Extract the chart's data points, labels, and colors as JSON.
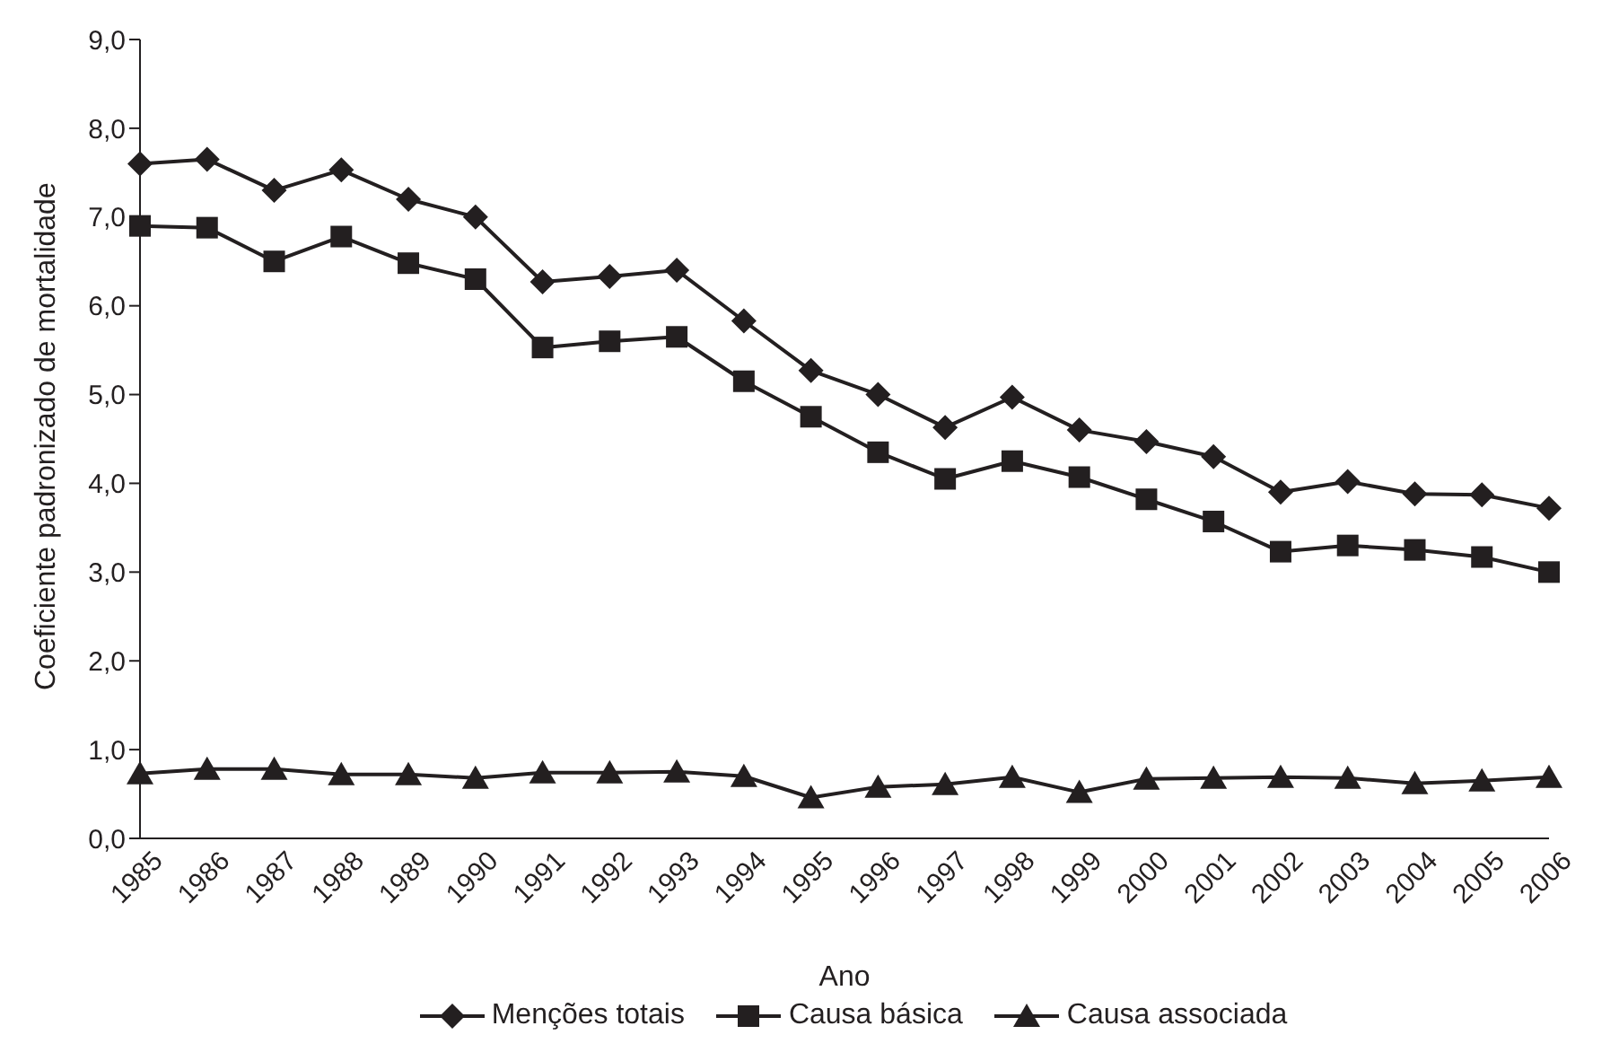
{
  "chart_data": {
    "type": "line",
    "xlabel": "Ano",
    "ylabel": "Coeficiente padronizado de mortalidade",
    "categories": [
      "1985",
      "1986",
      "1987",
      "1988",
      "1989",
      "1990",
      "1991",
      "1992",
      "1993",
      "1994",
      "1995",
      "1996",
      "1997",
      "1998",
      "1999",
      "2000",
      "2001",
      "2002",
      "2003",
      "2004",
      "2005",
      "2006"
    ],
    "series": [
      {
        "name": "Menções totais",
        "color": "#231f20",
        "marker": "diamond",
        "values": [
          7.6,
          7.65,
          7.3,
          7.53,
          7.2,
          7.0,
          6.27,
          6.33,
          6.4,
          5.83,
          5.27,
          5.0,
          4.63,
          4.97,
          4.6,
          4.47,
          4.3,
          3.9,
          4.02,
          3.88,
          3.87,
          3.72
        ]
      },
      {
        "name": "Causa básica",
        "color": "#231f20",
        "marker": "square",
        "values": [
          6.9,
          6.88,
          6.5,
          6.78,
          6.48,
          6.3,
          5.53,
          5.6,
          5.65,
          5.15,
          4.75,
          4.35,
          4.05,
          4.25,
          4.07,
          3.82,
          3.57,
          3.23,
          3.3,
          3.25,
          3.17,
          3.0
        ]
      },
      {
        "name": "Causa associada",
        "color": "#231f20",
        "marker": "triangle",
        "values": [
          0.73,
          0.78,
          0.78,
          0.72,
          0.72,
          0.68,
          0.74,
          0.74,
          0.75,
          0.7,
          0.46,
          0.58,
          0.61,
          0.69,
          0.52,
          0.67,
          0.68,
          0.69,
          0.68,
          0.62,
          0.65,
          0.69
        ]
      }
    ],
    "ylim": [
      0,
      9
    ],
    "yticks": [
      {
        "value": 0,
        "label": "0,0"
      },
      {
        "value": 1,
        "label": "1,0"
      },
      {
        "value": 2,
        "label": "2,0"
      },
      {
        "value": 3,
        "label": "3,0"
      },
      {
        "value": 4,
        "label": "4,0"
      },
      {
        "value": 5,
        "label": "5,0"
      },
      {
        "value": 6,
        "label": "6,0"
      },
      {
        "value": 7,
        "label": "7,0"
      },
      {
        "value": 8,
        "label": "8,0"
      },
      {
        "value": 9,
        "label": "9,0"
      }
    ],
    "grid": false,
    "legend": "bottom",
    "line_style": "solid"
  }
}
